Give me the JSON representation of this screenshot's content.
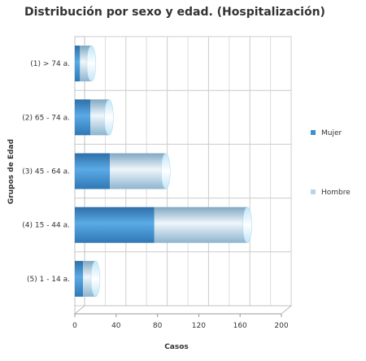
{
  "chart_data": {
    "type": "bar",
    "orientation": "horizontal",
    "stacked": true,
    "title": "Distribución por sexo y edad. (Hospitalización)",
    "xlabel": "Casos",
    "ylabel": "Grupos de Edad",
    "categories": [
      "(1) > 74 a.",
      "(2) 65 - 74 a.",
      "(3) 45 - 64 a.",
      "(4) 15 - 44 a.",
      "(5) 1 - 14 a."
    ],
    "series": [
      {
        "name": "Mujer",
        "values": [
          5,
          15,
          34,
          77,
          8
        ],
        "color": "#3f8fd0"
      },
      {
        "name": "Hombre",
        "values": [
          11,
          18,
          54,
          90,
          12
        ],
        "color": "#b8d4e6"
      }
    ],
    "xlim": [
      0,
      200
    ],
    "xticks": [
      0,
      40,
      80,
      120,
      160,
      200
    ],
    "grid": true,
    "legend_position": "right"
  }
}
